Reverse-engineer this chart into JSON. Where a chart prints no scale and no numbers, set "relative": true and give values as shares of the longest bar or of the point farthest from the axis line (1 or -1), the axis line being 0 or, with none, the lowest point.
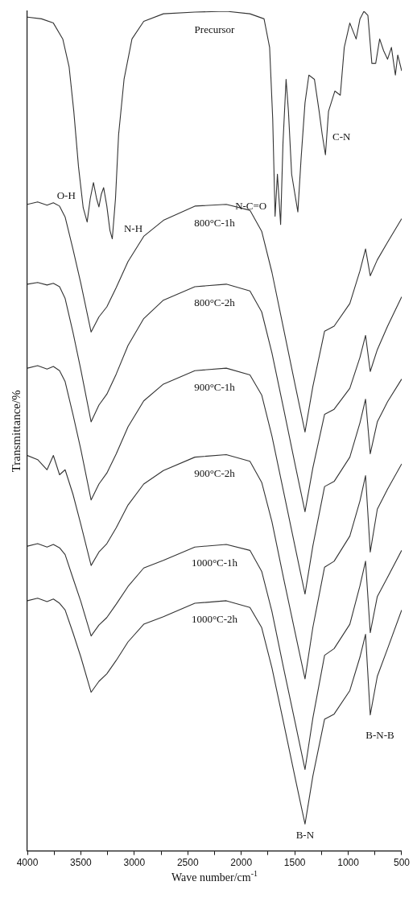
{
  "chart_data": {
    "type": "line",
    "xlabel": "Wave number/cm$^{-1}$",
    "ylabel": "Transmittance/%",
    "relative": true,
    "xlim": [
      4000,
      500
    ],
    "xticks": [
      4000,
      {
        "value": 3750,
        "label": null
      },
      3500,
      {
        "value": 3250,
        "label": null
      },
      3000,
      {
        "value": 2750,
        "label": null
      },
      2500,
      {
        "value": 2250,
        "label": null
      },
      2000,
      {
        "value": 1750,
        "label": null
      },
      1500,
      {
        "value": 1250,
        "label": null
      },
      1000,
      {
        "value": 750,
        "label": null
      },
      500
    ],
    "legend": false,
    "grid": false,
    "marker": "none",
    "line_style": "solid",
    "x": [
      4000,
      3904,
      3816,
      3757,
      3699,
      3647,
      3574,
      3500,
      3404,
      3331,
      3257,
      3169,
      3059,
      2912,
      2728,
      2434,
      2140,
      1919,
      1809,
      1713,
      1603,
      1493,
      1404,
      1331,
      1221,
      1132,
      985,
      890,
      838,
      794,
      728,
      632,
      500
    ],
    "series": [
      {
        "name": "Precursor",
        "color": "#333333",
        "x": [
          4000,
          3868,
          3757,
          3669,
          3610,
          3566,
          3522,
          3478,
          3441,
          3412,
          3382,
          3353,
          3331,
          3309,
          3287,
          3257,
          3228,
          3206,
          3176,
          3147,
          3096,
          3022,
          2912,
          2728,
          2434,
          2140,
          1919,
          1787,
          1735,
          1706,
          1684,
          1662,
          1632,
          1610,
          1581,
          1559,
          1529,
          1471,
          1441,
          1404,
          1368,
          1316,
          1272,
          1243,
          1213,
          1184,
          1125,
          1074,
          1037,
          985,
          926,
          890,
          853,
          816,
          779,
          743,
          706,
          669,
          632,
          596,
          559,
          537,
          500
        ],
        "values": [
          0.993,
          0.991,
          0.986,
          0.967,
          0.934,
          0.881,
          0.815,
          0.766,
          0.749,
          0.777,
          0.796,
          0.777,
          0.767,
          0.782,
          0.79,
          0.768,
          0.739,
          0.729,
          0.777,
          0.853,
          0.919,
          0.967,
          0.988,
          0.997,
          0.999,
          1.0,
          0.997,
          0.991,
          0.957,
          0.872,
          0.756,
          0.806,
          0.746,
          0.843,
          0.919,
          0.881,
          0.806,
          0.761,
          0.824,
          0.891,
          0.924,
          0.919,
          0.881,
          0.853,
          0.829,
          0.881,
          0.905,
          0.9,
          0.957,
          0.986,
          0.967,
          0.991,
          1.0,
          0.995,
          0.938,
          0.938,
          0.967,
          0.953,
          0.943,
          0.957,
          0.924,
          0.948,
          0.929
        ]
      },
      {
        "name": "800°C-1h",
        "color": "#333333",
        "values": [
          0.77,
          0.773,
          0.769,
          0.772,
          0.768,
          0.755,
          0.717,
          0.676,
          0.618,
          0.636,
          0.648,
          0.671,
          0.702,
          0.732,
          0.751,
          0.768,
          0.77,
          0.763,
          0.738,
          0.689,
          0.621,
          0.553,
          0.499,
          0.553,
          0.619,
          0.625,
          0.652,
          0.691,
          0.717,
          0.685,
          0.704,
          0.725,
          0.753
        ]
      },
      {
        "name": "800°C-2h",
        "color": "#333333",
        "values": [
          0.675,
          0.677,
          0.674,
          0.676,
          0.672,
          0.658,
          0.618,
          0.573,
          0.511,
          0.531,
          0.544,
          0.568,
          0.602,
          0.634,
          0.656,
          0.672,
          0.675,
          0.667,
          0.642,
          0.593,
          0.526,
          0.458,
          0.404,
          0.456,
          0.52,
          0.526,
          0.551,
          0.588,
          0.614,
          0.571,
          0.597,
          0.625,
          0.66
        ]
      },
      {
        "name": "900°C-1h",
        "color": "#333333",
        "values": [
          0.575,
          0.578,
          0.574,
          0.577,
          0.572,
          0.559,
          0.52,
          0.478,
          0.418,
          0.437,
          0.45,
          0.473,
          0.505,
          0.536,
          0.556,
          0.572,
          0.575,
          0.567,
          0.543,
          0.494,
          0.427,
          0.36,
          0.306,
          0.363,
          0.434,
          0.44,
          0.469,
          0.51,
          0.538,
          0.473,
          0.511,
          0.535,
          0.562
        ]
      },
      {
        "name": "900°C-2h",
        "color": "#333333",
        "values": [
          0.471,
          0.466,
          0.454,
          0.471,
          0.448,
          0.454,
          0.425,
          0.389,
          0.34,
          0.356,
          0.366,
          0.385,
          0.412,
          0.437,
          0.453,
          0.469,
          0.472,
          0.464,
          0.439,
          0.392,
          0.324,
          0.258,
          0.205,
          0.266,
          0.338,
          0.345,
          0.375,
          0.417,
          0.447,
          0.356,
          0.407,
          0.431,
          0.461
        ]
      },
      {
        "name": "1000°C-1h",
        "color": "#333333",
        "values": [
          0.363,
          0.366,
          0.362,
          0.365,
          0.361,
          0.353,
          0.325,
          0.297,
          0.256,
          0.269,
          0.278,
          0.294,
          0.315,
          0.337,
          0.346,
          0.362,
          0.365,
          0.358,
          0.333,
          0.285,
          0.217,
          0.151,
          0.097,
          0.158,
          0.233,
          0.241,
          0.27,
          0.316,
          0.345,
          0.26,
          0.303,
          0.326,
          0.358
        ]
      },
      {
        "name": "1000°C-2h",
        "color": "#333333",
        "values": [
          0.298,
          0.301,
          0.297,
          0.3,
          0.295,
          0.287,
          0.26,
          0.231,
          0.189,
          0.202,
          0.211,
          0.227,
          0.249,
          0.27,
          0.279,
          0.295,
          0.298,
          0.29,
          0.266,
          0.218,
          0.152,
          0.085,
          0.032,
          0.089,
          0.157,
          0.163,
          0.191,
          0.231,
          0.258,
          0.162,
          0.208,
          0.241,
          0.287
        ]
      }
    ],
    "annotations": [
      {
        "text": "O-H",
        "x": 3441,
        "y": 0.749
      },
      {
        "text": "N-H",
        "x": 3206,
        "y": 0.729
      },
      {
        "text": "N-C=O",
        "x": 1684,
        "y": 0.756
      },
      {
        "text": "C-N",
        "x": 1213,
        "y": 0.829
      },
      {
        "text": "B-N",
        "x": 1404,
        "y": 0.032
      },
      {
        "text": "B-N-B",
        "x": 794,
        "y": 0.162
      }
    ]
  }
}
